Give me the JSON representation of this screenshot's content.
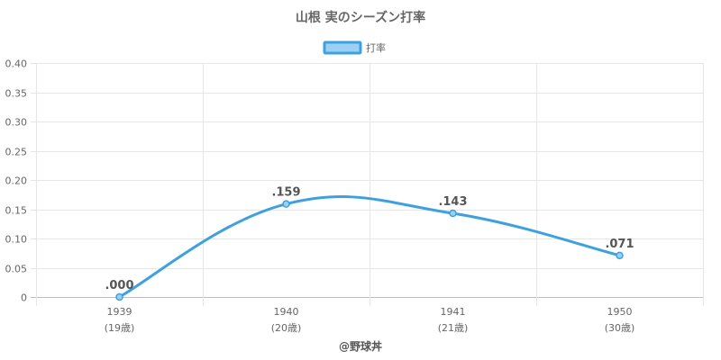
{
  "chart_data": {
    "type": "line",
    "title": "山根 実のシーズン打率",
    "legend": {
      "position": "top",
      "items": [
        "打率"
      ]
    },
    "categories": [
      "1939",
      "1940",
      "1941",
      "1950"
    ],
    "category_sublabels": [
      "(19歳)",
      "(20歳)",
      "(21歳)",
      "(30歳)"
    ],
    "series": [
      {
        "name": "打率",
        "values": [
          0.0,
          0.159,
          0.143,
          0.071
        ],
        "labels": [
          ".000",
          ".159",
          ".143",
          ".071"
        ]
      }
    ],
    "ylim": [
      0,
      0.4
    ],
    "yticks": [
      0,
      0.05,
      0.1,
      0.15,
      0.2,
      0.25,
      0.3,
      0.35,
      0.4
    ],
    "ytick_labels": [
      "0",
      "0.05",
      "0.10",
      "0.15",
      "0.20",
      "0.25",
      "0.30",
      "0.35",
      "0.40"
    ],
    "grid": true,
    "colors": {
      "line": "#3fa0e0",
      "fill": "#9bd0f5",
      "grid": "#e6e6e6",
      "text": "#666666"
    }
  },
  "credit": "@野球丼"
}
